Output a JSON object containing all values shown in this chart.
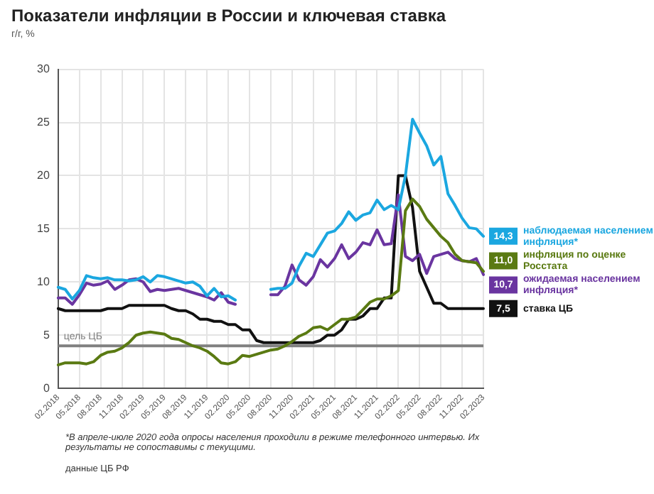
{
  "chart_data": {
    "type": "line",
    "title": "Показатели инфляции в России и ключевая ставка",
    "subtitle": "г/г, %",
    "categories": [
      "02.2018",
      null,
      null,
      "05.2018",
      null,
      null,
      "08.2018",
      null,
      null,
      "11.2018",
      null,
      null,
      "02.2019",
      null,
      null,
      "05.2019",
      null,
      null,
      "08.2019",
      null,
      null,
      "11.2019",
      null,
      null,
      "02.2020",
      null,
      null,
      "05.2020",
      null,
      null,
      "08.2020",
      null,
      null,
      "11.2020",
      null,
      null,
      "02.2021",
      null,
      null,
      "05.2021",
      null,
      null,
      "08.2021",
      null,
      null,
      "11.2021",
      null,
      null,
      "02.2022",
      null,
      null,
      "05.2022",
      null,
      null,
      "08.2022",
      null,
      null,
      "11.2022",
      null,
      null,
      "02.2023"
    ],
    "series": [
      {
        "name": "наблюдаемая населением инфляция*",
        "color": "#1ba7e0",
        "values": [
          9.5,
          9.3,
          8.4,
          9.2,
          10.6,
          10.4,
          10.3,
          10.4,
          10.2,
          10.2,
          10.1,
          10.2,
          10.5,
          10.0,
          10.6,
          10.5,
          10.3,
          10.1,
          9.9,
          10.0,
          9.6,
          8.7,
          9.4,
          8.6,
          8.7,
          8.3,
          null,
          null,
          null,
          null,
          9.3,
          9.4,
          9.4,
          9.9,
          11.5,
          12.7,
          12.4,
          13.5,
          14.6,
          14.8,
          15.5,
          16.6,
          15.8,
          16.3,
          16.5,
          17.7,
          16.8,
          17.2,
          16.8,
          20.0,
          25.3,
          24.0,
          22.8,
          21.0,
          21.8,
          18.3,
          17.2,
          16.0,
          15.1,
          15.0,
          14.3
        ],
        "value_labels": [
          null,
          null,
          null,
          null,
          null,
          null,
          null,
          null,
          null,
          null,
          null,
          null,
          null,
          null,
          null,
          null,
          null,
          null,
          null,
          null,
          null,
          null,
          null,
          null,
          null,
          null,
          null,
          null,
          null,
          null,
          null,
          null,
          null,
          null,
          null,
          null,
          null,
          null,
          null,
          null,
          null,
          null,
          null,
          null,
          null,
          null,
          null,
          null,
          null,
          null,
          null,
          null,
          null,
          null,
          null,
          null,
          null,
          null,
          null,
          null,
          "14,3"
        ]
      },
      {
        "name": "инфляция по оценке Росстата",
        "color": "#5a7a12",
        "values": [
          2.2,
          2.4,
          2.4,
          2.4,
          2.3,
          2.5,
          3.1,
          3.4,
          3.5,
          3.8,
          4.3,
          5.0,
          5.2,
          5.3,
          5.2,
          5.1,
          4.7,
          4.6,
          4.3,
          4.0,
          3.8,
          3.5,
          3.0,
          2.4,
          2.3,
          2.5,
          3.1,
          3.0,
          3.2,
          3.4,
          3.6,
          3.7,
          4.0,
          4.4,
          4.9,
          5.2,
          5.7,
          5.8,
          5.5,
          6.0,
          6.5,
          6.5,
          6.7,
          7.4,
          8.1,
          8.4,
          8.4,
          8.7,
          9.2,
          16.7,
          17.8,
          17.1,
          15.9,
          15.1,
          14.3,
          13.7,
          12.6,
          12.0,
          11.9,
          11.8,
          11.0
        ],
        "value_labels": [
          null,
          null,
          null,
          null,
          null,
          null,
          null,
          null,
          null,
          null,
          null,
          null,
          null,
          null,
          null,
          null,
          null,
          null,
          null,
          null,
          null,
          null,
          null,
          null,
          null,
          null,
          null,
          null,
          null,
          null,
          null,
          null,
          null,
          null,
          null,
          null,
          null,
          null,
          null,
          null,
          null,
          null,
          null,
          null,
          null,
          null,
          null,
          null,
          null,
          null,
          null,
          null,
          null,
          null,
          null,
          null,
          null,
          null,
          null,
          null,
          "11,0"
        ]
      },
      {
        "name": "ожидаемая населением инфляция*",
        "color": "#6a35a0",
        "values": [
          8.5,
          8.5,
          7.9,
          8.8,
          9.9,
          9.7,
          9.8,
          10.1,
          9.3,
          9.7,
          10.2,
          10.3,
          10.0,
          9.1,
          9.3,
          9.2,
          9.3,
          9.4,
          9.2,
          9.0,
          8.8,
          8.6,
          8.3,
          9.0,
          8.1,
          7.9,
          null,
          null,
          null,
          null,
          8.8,
          8.8,
          9.6,
          11.6,
          10.2,
          9.7,
          10.5,
          12.1,
          11.4,
          12.2,
          13.5,
          12.2,
          12.8,
          13.7,
          13.5,
          14.9,
          13.5,
          13.6,
          18.2,
          12.4,
          12.0,
          12.6,
          10.8,
          12.4,
          12.6,
          12.8,
          12.2,
          12.0,
          11.9,
          12.2,
          10.7
        ],
        "value_labels": [
          null,
          null,
          null,
          null,
          null,
          null,
          null,
          null,
          null,
          null,
          null,
          null,
          null,
          null,
          null,
          null,
          null,
          null,
          null,
          null,
          null,
          null,
          null,
          null,
          null,
          null,
          null,
          null,
          null,
          null,
          null,
          null,
          null,
          null,
          null,
          null,
          null,
          null,
          null,
          null,
          null,
          null,
          null,
          null,
          null,
          null,
          null,
          null,
          null,
          null,
          null,
          null,
          null,
          null,
          null,
          null,
          null,
          null,
          null,
          null,
          "10,7"
        ]
      },
      {
        "name": "ставка ЦБ",
        "color": "#111111",
        "values": [
          7.5,
          7.3,
          7.3,
          7.3,
          7.3,
          7.3,
          7.3,
          7.5,
          7.5,
          7.5,
          7.8,
          7.8,
          7.8,
          7.8,
          7.8,
          7.8,
          7.5,
          7.3,
          7.3,
          7.0,
          6.5,
          6.5,
          6.3,
          6.3,
          6.0,
          6.0,
          5.5,
          5.5,
          4.5,
          4.3,
          4.3,
          4.3,
          4.3,
          4.3,
          4.3,
          4.3,
          4.3,
          4.5,
          5.0,
          5.0,
          5.5,
          6.5,
          6.5,
          6.8,
          7.5,
          7.5,
          8.5,
          8.5,
          20,
          20,
          17,
          11,
          9.5,
          8,
          8,
          7.5,
          7.5,
          7.5,
          7.5,
          7.5,
          7.5
        ],
        "value_labels": [
          null,
          null,
          null,
          null,
          null,
          null,
          null,
          null,
          null,
          null,
          null,
          null,
          null,
          null,
          null,
          null,
          null,
          null,
          null,
          null,
          null,
          null,
          null,
          null,
          null,
          null,
          null,
          null,
          null,
          null,
          null,
          null,
          null,
          null,
          null,
          null,
          null,
          null,
          null,
          null,
          null,
          null,
          null,
          null,
          null,
          null,
          null,
          null,
          null,
          null,
          null,
          null,
          null,
          null,
          null,
          null,
          null,
          null,
          null,
          null,
          "7,5"
        ]
      }
    ],
    "ylim": [
      0,
      30
    ],
    "yticks": [
      0,
      5,
      10,
      15,
      20,
      25,
      30
    ],
    "grid": true,
    "legend": "right",
    "marker": "none",
    "line_style": "solid",
    "ref_lines": [
      {
        "axis": "y",
        "value": 4,
        "label": "цель ЦБ",
        "color": "#808080"
      }
    ],
    "annotations": [
      "*В апреле-июле 2020 года опросы населения проходили в режиме телефонного интервью. Их результаты не сопоставимы с текущими.",
      "данные ЦБ РФ"
    ]
  }
}
